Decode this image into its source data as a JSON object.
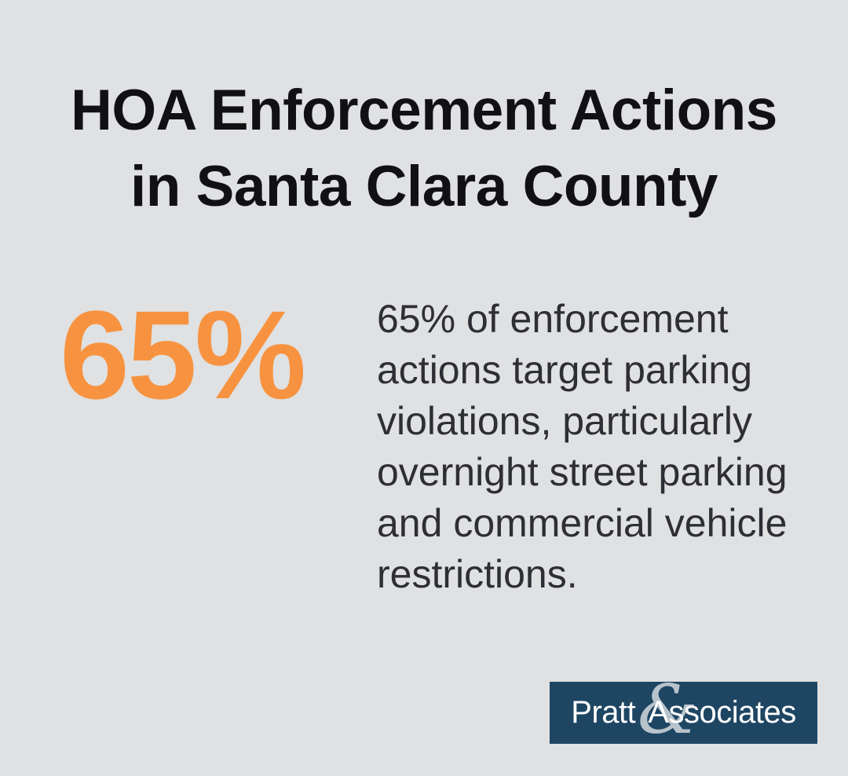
{
  "colors": {
    "bg": "#e0e1e2",
    "title": "#111114",
    "stat": "#f79340",
    "desc": "#2e2e35",
    "logo-bg": "#1e4663",
    "logo-text": "#ffffff",
    "logo-amp": "#b8c3cb"
  },
  "title": {
    "line1": "HOA Enforcement Actions",
    "line2": "in Santa Clara County"
  },
  "stat": {
    "value": "65%"
  },
  "description": {
    "text": "65% of enforcement\nactions target parking\nviolations, particularly\novernight street parking\nand commercial vehicle\nrestrictions."
  },
  "logo": {
    "name_part1": "Pratt",
    "ampersand": "&",
    "name_part2": "Associates"
  },
  "chart_data": {
    "type": "table",
    "title": "HOA Enforcement Actions in Santa Clara County",
    "categories": [
      "Enforcement actions targeting parking violations"
    ],
    "values": [
      65
    ],
    "unit": "percent",
    "annotations": [
      "65% of enforcement actions target parking violations, particularly overnight street parking and commercial vehicle restrictions."
    ]
  }
}
